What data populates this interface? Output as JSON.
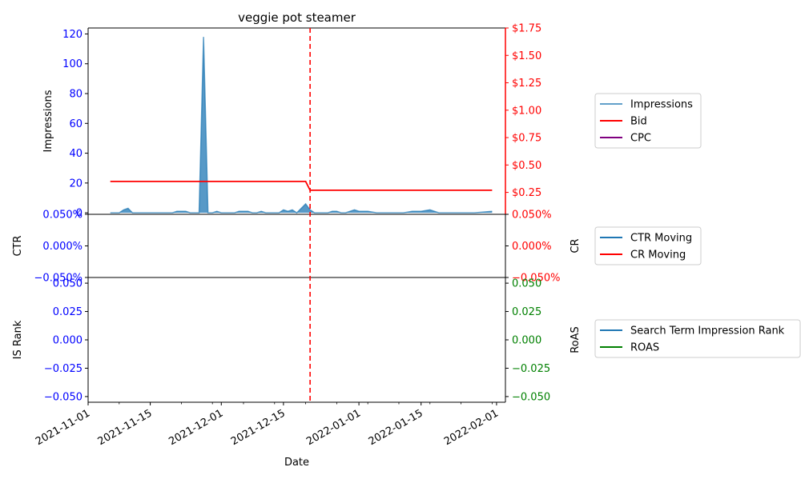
{
  "chart_data": {
    "type": "line",
    "title": "veggie pot steamer",
    "xlabel": "Date",
    "x_range": [
      "2021-11-01",
      "2022-02-03"
    ],
    "x_ticks": [
      "2021-11-01",
      "2021-11-15",
      "2021-12-01",
      "2021-12-15",
      "2022-01-01",
      "2022-01-15",
      "2022-02-01"
    ],
    "event_line_date": "2021-12-21",
    "colors": {
      "impressions": "#1f77b4",
      "bid": "#ff0000",
      "cpc": "#800080",
      "ctr": "#1f77b4",
      "cr": "#ff0000",
      "rank": "#1f77b4",
      "roas": "#008000",
      "left_ticks": "#0000ff",
      "right_ticks_top": "#ff0000",
      "right_ticks_bottom": "#008000"
    },
    "panels": [
      {
        "id": "top",
        "ylabel_left": "Impressions",
        "ylabel_right": "",
        "ylim_left": [
          -1,
          124
        ],
        "yticks_left": [
          "0",
          "20",
          "40",
          "60",
          "80",
          "100",
          "120"
        ],
        "ylim_right": [
          0.05,
          1.75
        ],
        "yticks_right": [
          "$0.25",
          "$0.50",
          "$0.75",
          "$1.00",
          "$1.25",
          "$1.50",
          "$1.75"
        ],
        "legend": [
          "Impressions",
          "Bid",
          "CPC"
        ],
        "series": [
          {
            "name": "Impressions",
            "axis": "left",
            "kind": "area",
            "points": [
              [
                "2021-11-06",
                0
              ],
              [
                "2021-11-07",
                0
              ],
              [
                "2021-11-08",
                0
              ],
              [
                "2021-11-09",
                2
              ],
              [
                "2021-11-10",
                3
              ],
              [
                "2021-11-11",
                0
              ],
              [
                "2021-11-12",
                0
              ],
              [
                "2021-11-13",
                0
              ],
              [
                "2021-11-14",
                0
              ],
              [
                "2021-11-15",
                0
              ],
              [
                "2021-11-16",
                0
              ],
              [
                "2021-11-17",
                0
              ],
              [
                "2021-11-18",
                0
              ],
              [
                "2021-11-19",
                0
              ],
              [
                "2021-11-20",
                0
              ],
              [
                "2021-11-21",
                1
              ],
              [
                "2021-11-22",
                1
              ],
              [
                "2021-11-23",
                1
              ],
              [
                "2021-11-24",
                0
              ],
              [
                "2021-11-25",
                0
              ],
              [
                "2021-11-26",
                0
              ],
              [
                "2021-11-27",
                118
              ],
              [
                "2021-11-28",
                0
              ],
              [
                "2021-11-29",
                0
              ],
              [
                "2021-11-30",
                1
              ],
              [
                "2021-12-01",
                0
              ],
              [
                "2021-12-02",
                0
              ],
              [
                "2021-12-03",
                0
              ],
              [
                "2021-12-04",
                0
              ],
              [
                "2021-12-05",
                1
              ],
              [
                "2021-12-06",
                1
              ],
              [
                "2021-12-07",
                1
              ],
              [
                "2021-12-08",
                0
              ],
              [
                "2021-12-09",
                0
              ],
              [
                "2021-12-10",
                1
              ],
              [
                "2021-12-11",
                0
              ],
              [
                "2021-12-12",
                0
              ],
              [
                "2021-12-13",
                0
              ],
              [
                "2021-12-14",
                0
              ],
              [
                "2021-12-15",
                2
              ],
              [
                "2021-12-16",
                1
              ],
              [
                "2021-12-17",
                2
              ],
              [
                "2021-12-18",
                0
              ],
              [
                "2021-12-19",
                3
              ],
              [
                "2021-12-20",
                6
              ],
              [
                "2021-12-21",
                2
              ],
              [
                "2021-12-22",
                0
              ],
              [
                "2021-12-23",
                0
              ],
              [
                "2021-12-24",
                0
              ],
              [
                "2021-12-25",
                0
              ],
              [
                "2021-12-26",
                1
              ],
              [
                "2021-12-27",
                1
              ],
              [
                "2021-12-28",
                0
              ],
              [
                "2021-12-29",
                0
              ],
              [
                "2021-12-30",
                1
              ],
              [
                "2021-12-31",
                2
              ],
              [
                "2022-01-01",
                1
              ],
              [
                "2022-01-03",
                1
              ],
              [
                "2022-01-05",
                0
              ],
              [
                "2022-01-07",
                0
              ],
              [
                "2022-01-09",
                0
              ],
              [
                "2022-01-11",
                0
              ],
              [
                "2022-01-13",
                1
              ],
              [
                "2022-01-15",
                1
              ],
              [
                "2022-01-17",
                2
              ],
              [
                "2022-01-19",
                0
              ],
              [
                "2022-01-21",
                0
              ],
              [
                "2022-01-23",
                0
              ],
              [
                "2022-01-27",
                0
              ],
              [
                "2022-01-31",
                1
              ]
            ]
          },
          {
            "name": "Bid",
            "axis": "right",
            "kind": "line",
            "points": [
              [
                "2021-11-06",
                0.35
              ],
              [
                "2021-12-20",
                0.35
              ],
              [
                "2021-12-21",
                0.27
              ],
              [
                "2022-01-31",
                0.27
              ]
            ]
          },
          {
            "name": "CPC",
            "axis": "right",
            "kind": "line",
            "points": []
          }
        ]
      },
      {
        "id": "middle",
        "ylabel_left": "CTR",
        "ylabel_right": "CR",
        "ylim_left": [
          -0.05,
          0.05
        ],
        "yticks_left": [
          "−0.050%",
          "0.000%",
          "0.050%"
        ],
        "ylim_right": [
          -0.05,
          0.05
        ],
        "yticks_right": [
          "−0.050%",
          "0.000%",
          "0.050%"
        ],
        "legend": [
          "CTR Moving",
          "CR Moving"
        ],
        "series": [
          {
            "name": "CTR Moving",
            "axis": "left",
            "kind": "line",
            "points": []
          },
          {
            "name": "CR Moving",
            "axis": "right",
            "kind": "line",
            "points": []
          }
        ]
      },
      {
        "id": "bottom",
        "ylabel_left": "IS Rank",
        "ylabel_right": "RoAS",
        "ylim_left": [
          -0.055,
          0.055
        ],
        "yticks_left": [
          "−0.050",
          "−0.025",
          "0.000",
          "0.025",
          "0.050"
        ],
        "ylim_right": [
          -0.055,
          0.055
        ],
        "yticks_right": [
          "−0.050",
          "−0.025",
          "0.000",
          "0.025",
          "0.050"
        ],
        "legend": [
          "Search Term Impression Rank",
          "ROAS"
        ],
        "series": [
          {
            "name": "Search Term Impression Rank",
            "axis": "left",
            "kind": "line",
            "points": []
          },
          {
            "name": "ROAS",
            "axis": "right",
            "kind": "line",
            "points": []
          }
        ]
      }
    ]
  }
}
